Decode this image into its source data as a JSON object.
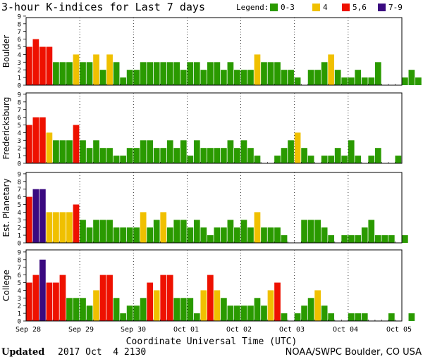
{
  "header": {
    "title": "3-hour K-indices for Last 7 days",
    "legend_label": "Legend:",
    "legend": [
      {
        "label": "0-3",
        "color": "#2a9a00"
      },
      {
        "label": "4",
        "color": "#f0c000"
      },
      {
        "label": "5,6",
        "color": "#ee1100"
      },
      {
        "label": "7-9",
        "color": "#3a0a80"
      }
    ]
  },
  "chart_data": {
    "type": "bar",
    "bars_per_day": 8,
    "ylim": [
      0,
      9
    ],
    "yticks": [
      0,
      1,
      2,
      3,
      4,
      5,
      6,
      7,
      8,
      9
    ],
    "xlabel": "Coordinate Universal Time (UTC)",
    "day_labels": [
      "Sep 28",
      "Sep 29",
      "Sep 30",
      "Oct 01",
      "Oct 02",
      "Oct 03",
      "Oct 04",
      "Oct 05"
    ],
    "series": [
      {
        "name": "Boulder",
        "values": [
          5,
          6,
          5,
          5,
          3,
          3,
          3,
          4,
          3,
          3,
          4,
          2,
          4,
          3,
          1,
          2,
          2,
          3,
          3,
          3,
          3,
          3,
          3,
          2,
          3,
          3,
          2,
          3,
          3,
          2,
          3,
          2,
          2,
          2,
          4,
          3,
          3,
          3,
          2,
          2,
          1,
          0,
          2,
          2,
          3,
          4,
          2,
          1,
          1,
          2,
          1,
          1,
          3,
          0,
          0,
          0,
          1,
          2,
          1,
          0
        ]
      },
      {
        "name": "Fredericksburg",
        "values": [
          5,
          6,
          6,
          4,
          3,
          3,
          3,
          5,
          3,
          2,
          3,
          2,
          2,
          1,
          1,
          2,
          2,
          3,
          3,
          2,
          2,
          3,
          2,
          3,
          1,
          3,
          2,
          2,
          2,
          2,
          3,
          2,
          3,
          2,
          1,
          0,
          0,
          1,
          2,
          3,
          4,
          2,
          1,
          0,
          1,
          1,
          2,
          1,
          3,
          1,
          0,
          1,
          2,
          0,
          0,
          1,
          0
        ]
      },
      {
        "name": "Est. Planetary",
        "values": [
          6,
          7,
          7,
          4,
          4,
          4,
          4,
          5,
          3,
          2,
          3,
          3,
          3,
          2,
          2,
          2,
          2,
          4,
          2,
          3,
          4,
          2,
          3,
          3,
          2,
          3,
          2,
          1,
          2,
          2,
          3,
          2,
          3,
          2,
          4,
          2,
          2,
          2,
          1,
          0,
          0,
          3,
          3,
          3,
          2,
          1,
          0,
          1,
          1,
          1,
          2,
          3,
          1,
          1,
          1,
          0,
          1
        ]
      },
      {
        "name": "College",
        "values": [
          5,
          6,
          8,
          5,
          5,
          6,
          3,
          3,
          3,
          2,
          4,
          6,
          6,
          3,
          1,
          2,
          2,
          3,
          5,
          4,
          6,
          6,
          3,
          3,
          3,
          1,
          4,
          6,
          4,
          3,
          2,
          2,
          2,
          2,
          3,
          2,
          4,
          5,
          1,
          0,
          1,
          2,
          3,
          4,
          2,
          1,
          0,
          0,
          1,
          1,
          1,
          0,
          0,
          0,
          1,
          0,
          0,
          1,
          0
        ]
      }
    ]
  },
  "footer": {
    "updated_label": "Updated",
    "updated_value": "2017 Oct  4 2130",
    "credit": "NOAA/SWPC Boulder, CO USA"
  }
}
